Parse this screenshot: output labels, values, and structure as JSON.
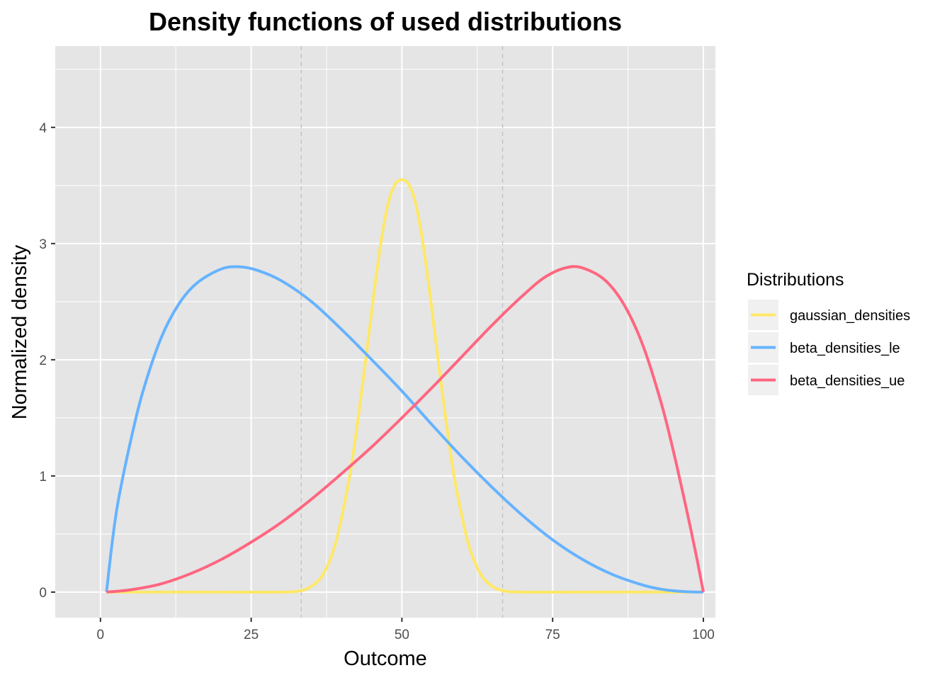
{
  "chart_data": {
    "type": "line",
    "title": "Density functions of used distributions",
    "xlabel": "Outcome",
    "ylabel": "Normalized density",
    "xlim": [
      -7.5,
      102
    ],
    "ylim": [
      -0.22,
      4.7
    ],
    "x_ticks": [
      0,
      25,
      50,
      75,
      100
    ],
    "x_tick_labels": [
      "0",
      "25",
      "50",
      "75",
      "100"
    ],
    "y_ticks": [
      0,
      1,
      2,
      3,
      4
    ],
    "y_tick_labels": [
      "0",
      "1",
      "2",
      "3",
      "4"
    ],
    "grid": true,
    "panel_background": "#e5e5e5",
    "grid_color": "#ffffff",
    "vlines": [
      {
        "x": 33.3,
        "style": "dashed",
        "color": "#bdbdbd"
      },
      {
        "x": 50,
        "style": "dashed",
        "color": "#ffffff"
      },
      {
        "x": 66.7,
        "style": "dashed",
        "color": "#bdbdbd"
      }
    ],
    "legend": {
      "title": "Distributions",
      "position": "right"
    },
    "series": [
      {
        "name": "gaussian_densities",
        "color": "#ffe866",
        "x": [
          1,
          10,
          20,
          30,
          33,
          35,
          37,
          39,
          41,
          42,
          43,
          44,
          45,
          46,
          47,
          48,
          49,
          50,
          51,
          52,
          53,
          54,
          55,
          56,
          57,
          58,
          59,
          61,
          63,
          65,
          67,
          70,
          80,
          90,
          100
        ],
        "y": [
          0,
          0,
          0,
          0,
          0.01,
          0.05,
          0.16,
          0.42,
          0.9,
          1.22,
          1.6,
          2.0,
          2.42,
          2.82,
          3.16,
          3.4,
          3.52,
          3.55,
          3.52,
          3.4,
          3.16,
          2.82,
          2.42,
          2.0,
          1.6,
          1.22,
          0.9,
          0.42,
          0.16,
          0.05,
          0.01,
          0,
          0,
          0,
          0
        ]
      },
      {
        "name": "beta_densities_le",
        "color": "#66b3ff",
        "x": [
          1,
          2,
          3,
          5,
          7,
          10,
          13,
          16,
          20,
          23,
          26,
          30,
          35,
          40,
          45,
          50,
          55,
          60,
          65,
          70,
          75,
          80,
          85,
          90,
          93,
          96,
          98,
          100
        ],
        "y": [
          0,
          0.45,
          0.8,
          1.3,
          1.72,
          2.18,
          2.48,
          2.66,
          2.78,
          2.8,
          2.77,
          2.68,
          2.5,
          2.26,
          2.0,
          1.73,
          1.44,
          1.16,
          0.9,
          0.66,
          0.45,
          0.28,
          0.15,
          0.06,
          0.025,
          0.007,
          0.002,
          0
        ]
      },
      {
        "name": "beta_densities_ue",
        "color": "#ff6680",
        "x": [
          1,
          5,
          10,
          15,
          20,
          25,
          30,
          35,
          40,
          45,
          50,
          55,
          60,
          65,
          70,
          74,
          78,
          81,
          84,
          87,
          90,
          93,
          95,
          97,
          98,
          99,
          100
        ],
        "y": [
          0,
          0.02,
          0.07,
          0.16,
          0.28,
          0.43,
          0.6,
          0.8,
          1.02,
          1.25,
          1.5,
          1.76,
          2.03,
          2.3,
          2.55,
          2.72,
          2.8,
          2.77,
          2.67,
          2.46,
          2.12,
          1.63,
          1.22,
          0.76,
          0.52,
          0.27,
          0
        ]
      }
    ]
  }
}
